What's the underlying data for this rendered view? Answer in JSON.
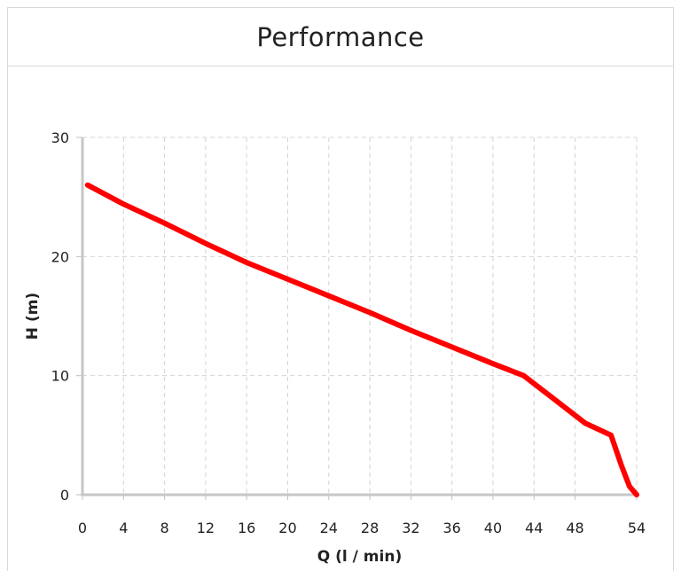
{
  "panel": {
    "title": "Performance"
  },
  "chart_data": {
    "type": "line",
    "title": "Performance",
    "xlabel": "Q (l / min)",
    "ylabel": "H (m)",
    "xlim": [
      0,
      54
    ],
    "ylim": [
      0,
      30
    ],
    "x_ticks": [
      "0",
      "4",
      "8",
      "12",
      "16",
      "20",
      "24",
      "28",
      "32",
      "36",
      "40",
      "44",
      "48",
      "54"
    ],
    "y_ticks": [
      "0",
      "10",
      "20",
      "30"
    ],
    "grid": true,
    "series": [
      {
        "color": "#ff0000",
        "x": [
          0.5,
          4,
          8,
          12,
          16,
          20,
          24,
          28,
          32,
          36,
          40,
          43,
          46,
          49,
          51.5,
          52.5,
          53.3,
          54
        ],
        "y": [
          26,
          24.4,
          22.8,
          21.1,
          19.5,
          18.1,
          16.7,
          15.3,
          13.8,
          12.4,
          11,
          10,
          8,
          6,
          5,
          2.5,
          0.7,
          0
        ]
      }
    ]
  }
}
